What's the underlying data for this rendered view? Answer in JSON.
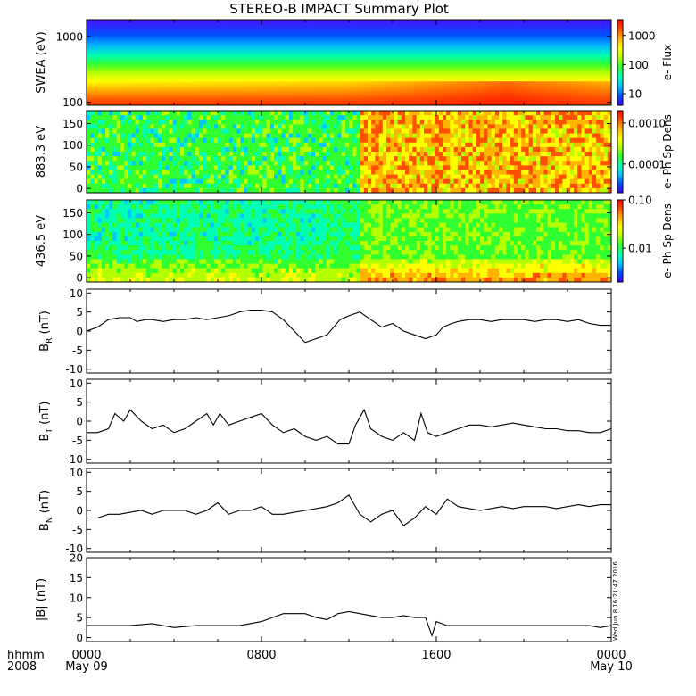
{
  "title": "STEREO-B IMPACT Summary Plot",
  "stamp": "Wed Jun  8 16:21:47 2016",
  "colors": {
    "rainbow": [
      "#3a00ff",
      "#0050ff",
      "#00c8ff",
      "#00ffb4",
      "#30ff30",
      "#b4ff00",
      "#ffff00",
      "#ffb400",
      "#ff5000",
      "#ff0000"
    ],
    "line": "#000000"
  },
  "x_axis": {
    "tick_labels": [
      "0000",
      "0800",
      "1600",
      "0000"
    ],
    "sub_labels": [
      "May 09",
      "",
      "",
      "May 10"
    ],
    "left_label_1": "hhmm",
    "left_label_2": "2008",
    "range_hours": [
      0,
      24
    ]
  },
  "chart_data": [
    {
      "type": "heatmap",
      "name": "swea",
      "ylabel": "SWEA (eV)",
      "scale": "log",
      "ylim": [
        90,
        1800
      ],
      "yticks": [
        100,
        1000
      ],
      "ytick_labels": [
        "100",
        "1000"
      ],
      "colorbar": {
        "label": "e- Flux",
        "scale": "log",
        "range": [
          4,
          3500
        ],
        "ticks": [
          10,
          100,
          1000
        ],
        "tick_labels": [
          "10",
          "100",
          "1000"
        ]
      }
    },
    {
      "type": "heatmap",
      "name": "pad883",
      "ylabel": "883.3 eV",
      "ylim": [
        -10,
        180
      ],
      "yticks": [
        0,
        50,
        100,
        150
      ],
      "ytick_labels": [
        "0",
        "50",
        "100",
        "150"
      ],
      "colorbar": {
        "label": "e- Ph Sp Dens",
        "scale": "log",
        "range": [
          2e-05,
          0.002
        ],
        "ticks": [
          0.0001,
          0.001
        ],
        "tick_labels": [
          "0.0001",
          "0.0010"
        ]
      }
    },
    {
      "type": "heatmap",
      "name": "pad436",
      "ylabel": "436.5 eV",
      "ylim": [
        -10,
        180
      ],
      "yticks": [
        0,
        50,
        100,
        150
      ],
      "ytick_labels": [
        "0",
        "50",
        "100",
        "150"
      ],
      "colorbar": {
        "label": "e- Ph Sp Dens",
        "scale": "log",
        "range": [
          0.002,
          0.1
        ],
        "ticks": [
          0.01,
          0.1
        ],
        "tick_labels": [
          "0.01",
          "0.10"
        ]
      }
    },
    {
      "type": "line",
      "name": "br",
      "ylabel_main": "B",
      "ylabel_sub": "R",
      "ylabel_unit": " (nT)",
      "ylim": [
        -11,
        11
      ],
      "yticks": [
        -10,
        -5,
        0,
        5,
        10
      ],
      "ytick_labels": [
        "-10",
        "-5",
        "0",
        "5",
        "10"
      ],
      "x": [
        0,
        0.5,
        1,
        1.5,
        2,
        2.3,
        2.7,
        3,
        3.5,
        4,
        4.5,
        5,
        5.5,
        6,
        6.5,
        7,
        7.5,
        8,
        8.5,
        9,
        9.5,
        10,
        10.5,
        11,
        11.3,
        11.6,
        12,
        12.5,
        13,
        13.5,
        14,
        14.5,
        15,
        15.5,
        16,
        16.3,
        16.7,
        17,
        17.5,
        18,
        18.5,
        19,
        19.5,
        20,
        20.5,
        21,
        21.5,
        22,
        22.5,
        23,
        23.5,
        24
      ],
      "y": [
        0,
        1,
        3,
        3.5,
        3.5,
        2.5,
        3,
        3,
        2.5,
        3,
        3,
        3.5,
        3,
        3.5,
        4,
        5,
        5.5,
        5.5,
        5,
        3,
        0,
        -3,
        -2,
        -1,
        1,
        3,
        4,
        5,
        3,
        1,
        2,
        0,
        -1,
        -2,
        -1,
        1,
        2,
        2.5,
        3,
        3,
        2.5,
        3,
        3,
        3,
        2.5,
        3,
        3,
        2.5,
        3,
        2,
        1.5,
        1.5
      ]
    },
    {
      "type": "line",
      "name": "bt",
      "ylabel_main": "B",
      "ylabel_sub": "T",
      "ylabel_unit": " (nT)",
      "ylim": [
        -11,
        11
      ],
      "yticks": [
        -10,
        -5,
        0,
        5,
        10
      ],
      "ytick_labels": [
        "-10",
        "-5",
        "0",
        "5",
        "10"
      ],
      "x": [
        0,
        0.5,
        1,
        1.3,
        1.7,
        2,
        2.5,
        3,
        3.5,
        4,
        4.5,
        5,
        5.5,
        5.8,
        6.1,
        6.5,
        7,
        7.5,
        8,
        8.5,
        9,
        9.5,
        10,
        10.5,
        11,
        11.5,
        12,
        12.3,
        12.7,
        13,
        13.5,
        14,
        14.5,
        15,
        15.3,
        15.6,
        16,
        16.5,
        17,
        17.5,
        18,
        18.5,
        19,
        19.5,
        20,
        20.5,
        21,
        21.5,
        22,
        22.5,
        23,
        23.5,
        24
      ],
      "y": [
        -3,
        -3,
        -2,
        2,
        0,
        3,
        0,
        -2,
        -1,
        -3,
        -2,
        0,
        2,
        -1,
        2,
        -1,
        0,
        1,
        2,
        -1,
        -3,
        -2,
        -4,
        -5,
        -4,
        -6,
        -6,
        -1,
        3,
        -2,
        -4,
        -5,
        -3,
        -5,
        2,
        -3,
        -4,
        -3,
        -2,
        -1,
        -1,
        -1.5,
        -1,
        -0.5,
        -1,
        -1.5,
        -2,
        -2,
        -2.5,
        -2.5,
        -3,
        -3,
        -2
      ]
    },
    {
      "type": "line",
      "name": "bn",
      "ylabel_main": "B",
      "ylabel_sub": "N",
      "ylabel_unit": " (nT)",
      "ylim": [
        -11,
        11
      ],
      "yticks": [
        -10,
        -5,
        0,
        5,
        10
      ],
      "ytick_labels": [
        "-10",
        "-5",
        "0",
        "5",
        "10"
      ],
      "x": [
        0,
        0.5,
        1,
        1.5,
        2,
        2.5,
        3,
        3.5,
        4,
        4.5,
        5,
        5.5,
        6,
        6.5,
        7,
        7.5,
        8,
        8.5,
        9,
        9.5,
        10,
        10.5,
        11,
        11.5,
        12,
        12.5,
        13,
        13.5,
        14,
        14.5,
        15,
        15.5,
        16,
        16.5,
        17,
        17.5,
        18,
        18.5,
        19,
        19.5,
        20,
        20.5,
        21,
        21.5,
        22,
        22.5,
        23,
        23.5,
        24
      ],
      "y": [
        -2,
        -2,
        -1,
        -1,
        -0.5,
        0,
        -1,
        0,
        0,
        0,
        -1,
        0,
        2,
        -1,
        0,
        0,
        1,
        -1,
        -1,
        -0.5,
        0,
        0.5,
        1,
        2,
        4,
        -1,
        -3,
        -1,
        0,
        -4,
        -2,
        1,
        -1,
        3,
        1,
        0.5,
        0,
        0.5,
        1,
        0.5,
        1,
        1,
        1,
        0.5,
        1,
        1.5,
        1,
        1.5,
        1.5
      ]
    },
    {
      "type": "line",
      "name": "bmag",
      "ylabel": "|B| (nT)",
      "ylim": [
        -1,
        20
      ],
      "yticks": [
        0,
        5,
        10,
        15,
        20
      ],
      "ytick_labels": [
        "0",
        "5",
        "10",
        "15",
        "20"
      ],
      "x": [
        0,
        1,
        2,
        3,
        4,
        5,
        6,
        7,
        8,
        8.5,
        9,
        9.5,
        10,
        10.5,
        11,
        11.5,
        12,
        12.5,
        13,
        13.5,
        14,
        14.5,
        15,
        15.5,
        15.8,
        16,
        16.5,
        17,
        17.5,
        18,
        19,
        20,
        21,
        22,
        23,
        23.5,
        24
      ],
      "y": [
        3,
        3,
        3,
        3.5,
        2.5,
        3,
        3,
        3,
        4,
        5,
        6,
        6,
        6,
        5,
        4.5,
        6,
        6.5,
        6,
        5.5,
        5,
        5,
        5.5,
        5,
        5,
        0.5,
        4,
        3,
        3,
        3,
        3,
        3,
        3,
        3,
        3,
        3,
        2.5,
        3
      ]
    }
  ]
}
